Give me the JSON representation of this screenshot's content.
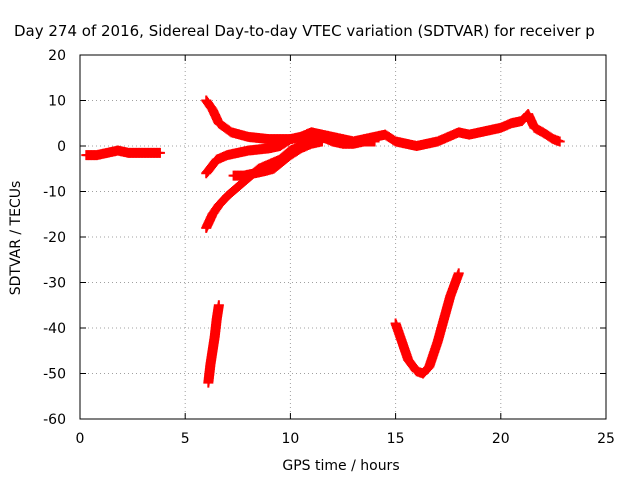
{
  "chart_data": {
    "type": "scatter",
    "title": "Day 274 of 2016, Sidereal Day-to-day VTEC variation (SDTVAR) for receiver p",
    "xlabel": "GPS time / hours",
    "ylabel": "SDTVAR / TECUs",
    "xlim": [
      0,
      25
    ],
    "ylim": [
      -60,
      20
    ],
    "xticks": [
      0,
      5,
      10,
      15,
      20,
      25
    ],
    "yticks": [
      20,
      10,
      0,
      -10,
      -20,
      -30,
      -40,
      -50,
      -60
    ],
    "grid": true,
    "marker": "+",
    "color": "#ff0000",
    "series": [
      {
        "x": [
          0.3,
          0.8,
          1.3,
          1.8,
          2.3,
          2.8,
          3.3,
          3.8
        ],
        "y": [
          -2,
          -2,
          -1.5,
          -1,
          -1.5,
          -1.5,
          -1.5,
          -1.5
        ]
      },
      {
        "x": [
          6.0,
          6.3,
          6.6,
          7.2,
          8.0,
          9.0,
          10.0,
          10.5,
          11.0,
          11.5,
          12.0,
          12.5,
          13.0,
          13.5,
          14.0,
          14.5,
          15.0,
          15.5,
          16.0,
          16.5,
          17.0,
          17.5,
          18.0,
          18.5,
          19.0,
          19.5,
          20.0,
          20.5,
          21.0,
          21.3,
          21.6,
          22.0,
          22.5,
          22.8
        ],
        "y": [
          10,
          8,
          5,
          3,
          2,
          1.5,
          1.5,
          2,
          3,
          2.5,
          2,
          1.5,
          1,
          1.5,
          2,
          2.5,
          1,
          0.5,
          0,
          0.5,
          1,
          2,
          3,
          2.5,
          3,
          3.5,
          4,
          5,
          5.5,
          7,
          4,
          3,
          1.5,
          1
        ]
      },
      {
        "x": [
          6.0,
          6.5,
          7.0,
          7.5,
          8.0,
          9.0,
          9.5,
          10.0,
          10.5,
          11.0,
          11.5,
          12.0,
          12.5,
          13.0,
          13.5,
          14.0
        ],
        "y": [
          -6,
          -3,
          -2,
          -1.5,
          -1,
          -0.5,
          0,
          1.5,
          2,
          3,
          2,
          1,
          0.5,
          0.5,
          1,
          1
        ]
      },
      {
        "x": [
          6.0,
          6.3,
          6.6,
          7.0,
          7.5,
          8.0,
          8.5,
          9.0,
          9.5,
          10.0,
          10.5,
          11.0,
          11.5
        ],
        "y": [
          -18,
          -15,
          -13,
          -11,
          -9,
          -7,
          -5,
          -4,
          -3,
          -1,
          0,
          1,
          1.5
        ]
      },
      {
        "x": [
          7.3,
          7.8,
          8.3,
          8.8,
          9.2,
          9.6,
          10.0,
          10.5,
          11.0,
          11.5
        ],
        "y": [
          -6.5,
          -6.5,
          -6,
          -5.5,
          -5,
          -3.5,
          -2,
          -0.5,
          0.5,
          1
        ]
      },
      {
        "x": [
          6.1,
          6.2,
          6.3,
          6.4,
          6.5,
          6.6
        ],
        "y": [
          -52,
          -48,
          -45,
          -42,
          -38,
          -35
        ]
      },
      {
        "x": [
          15.0,
          15.3,
          15.6,
          16.0,
          16.3,
          16.6,
          17.0,
          17.3,
          17.6,
          18.0
        ],
        "y": [
          -39,
          -43,
          -47,
          -49.5,
          -50,
          -48.5,
          -43,
          -38,
          -33,
          -28
        ]
      }
    ]
  }
}
